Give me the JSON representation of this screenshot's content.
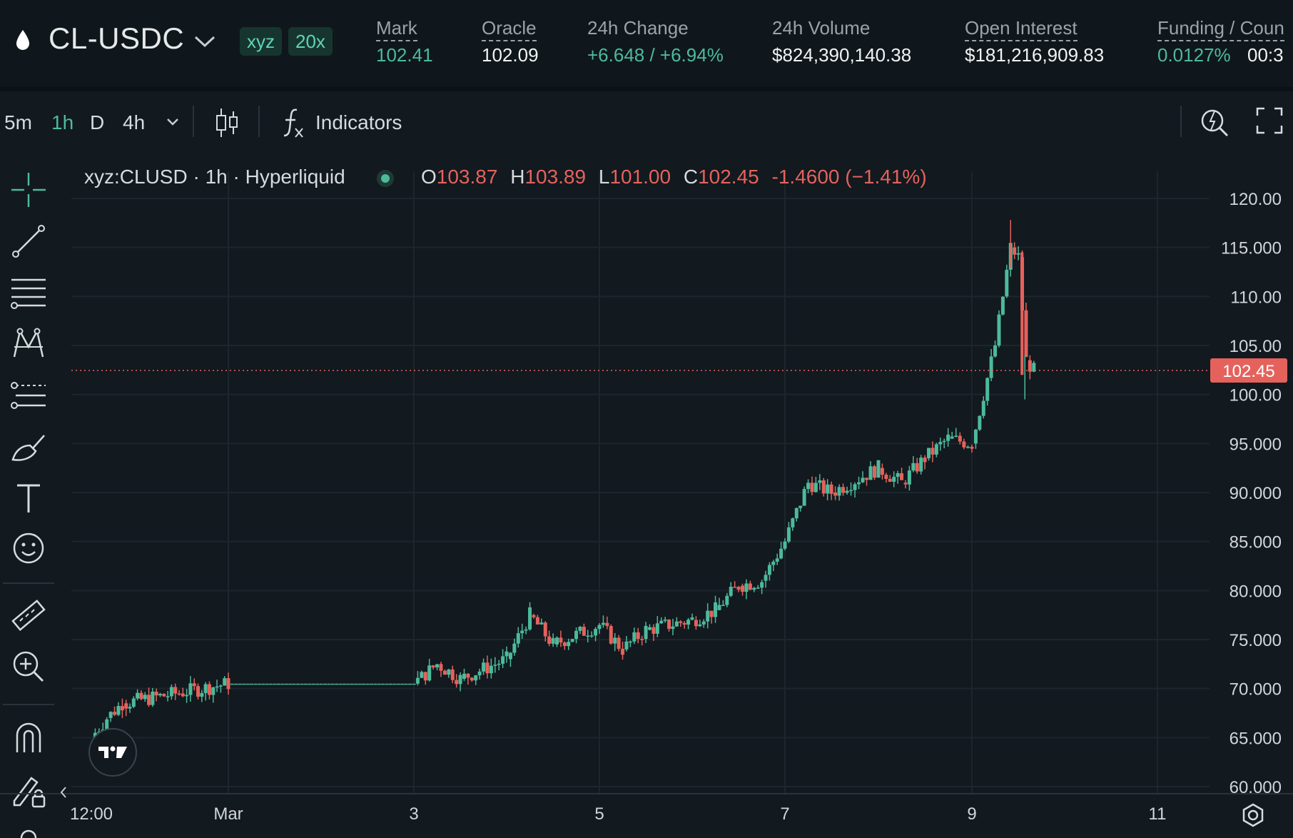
{
  "header": {
    "asset": "CL-USDC",
    "pill_dex": "xyz",
    "pill_leverage": "20x",
    "stats": [
      {
        "label": "Mark",
        "value": "102.41",
        "underlined": true,
        "value_color": "green"
      },
      {
        "label": "Oracle",
        "value": "102.09",
        "underlined": true,
        "value_color": "white"
      },
      {
        "label": "24h Change",
        "value": "+6.648 / +6.94%",
        "underlined": false,
        "value_color": "green"
      },
      {
        "label": "24h Volume",
        "value": "$824,390,140.38",
        "underlined": false,
        "value_color": "white"
      },
      {
        "label": "Open Interest",
        "value": "$181,216,909.83",
        "underlined": true,
        "value_color": "white"
      },
      {
        "label": "Funding / Coun",
        "value": "0.0127%",
        "value2": "00:3",
        "underlined": true,
        "value_color": "green"
      }
    ]
  },
  "toolbar": {
    "timeframes": [
      "5m",
      "1h",
      "D",
      "4h"
    ],
    "active_timeframe": "1h",
    "indicators_label": "Indicators"
  },
  "legend": {
    "symbol": "xyz:CLUSD · 1h · Hyperliquid",
    "o_label": "O",
    "o_value": "103.87",
    "h_label": "H",
    "h_value": "103.89",
    "l_label": "L",
    "l_value": "101.00",
    "c_label": "C",
    "c_value": "102.45",
    "change": "-1.4600 (−1.41%)"
  },
  "colors": {
    "up": "#4dba9b",
    "down": "#e5625c",
    "background": "#12191f"
  },
  "icons": [
    "drop-icon",
    "chevron-down-icon",
    "candle-type-icon",
    "fx-icon",
    "quick-search-icon",
    "fullscreen-icon",
    "crosshair-icon",
    "trendline-icon",
    "fib-icon",
    "pattern-icon",
    "forecast-icon",
    "brush-icon",
    "text-icon",
    "emoji-icon",
    "ruler-icon",
    "zoom-in-icon",
    "magnet-icon",
    "lock-drawings-icon",
    "settings-icon"
  ],
  "chart_data": {
    "type": "candlestick",
    "interval": "1h",
    "ylim": [
      60,
      120
    ],
    "y_ticks": [
      "120.00",
      "115.000",
      "110.00",
      "105.00",
      "100.00",
      "95.000",
      "90.000",
      "85.000",
      "80.000",
      "75.000",
      "70.000",
      "65.000",
      "60.000"
    ],
    "x_ticks": [
      "12:00",
      "Mar",
      "3",
      "5",
      "7",
      "9",
      "11"
    ],
    "last_price": "102.45",
    "series": [
      {
        "x": "Mar 1 12:00",
        "close": 65.0
      },
      {
        "x": "Mar 1 16:00",
        "close": 67.0
      },
      {
        "x": "Mar 1 20:00",
        "close": 68.5
      },
      {
        "x": "Mar 2 00:00",
        "close": 70.5
      },
      {
        "x": "Mar 2 12:00",
        "close": 70.5
      },
      {
        "x": "Mar 3 00:00",
        "close": 70.5
      },
      {
        "x": "Mar 3 06:00",
        "close": 72.5
      },
      {
        "x": "Mar 3 12:00",
        "close": 71.0
      },
      {
        "x": "Mar 4 00:00",
        "close": 73.0
      },
      {
        "x": "Mar 4 06:00",
        "close": 77.5
      },
      {
        "x": "Mar 4 12:00",
        "close": 74.5
      },
      {
        "x": "Mar 5 00:00",
        "close": 76.5
      },
      {
        "x": "Mar 5 06:00",
        "close": 74.0
      },
      {
        "x": "Mar 5 12:00",
        "close": 76.0
      },
      {
        "x": "Mar 6 00:00",
        "close": 77.0
      },
      {
        "x": "Mar 6 06:00",
        "close": 78.0
      },
      {
        "x": "Mar 6 12:00",
        "close": 80.5
      },
      {
        "x": "Mar 6 18:00",
        "close": 81.0
      },
      {
        "x": "Mar 7 00:00",
        "close": 85.0
      },
      {
        "x": "Mar 7 06:00",
        "close": 91.0
      },
      {
        "x": "Mar 7 12:00",
        "close": 90.0
      },
      {
        "x": "Mar 8 00:00",
        "close": 92.5
      },
      {
        "x": "Mar 8 06:00",
        "close": 91.0
      },
      {
        "x": "Mar 8 12:00",
        "close": 93.5
      },
      {
        "x": "Mar 8 18:00",
        "close": 95.5
      },
      {
        "x": "Mar 9 00:00",
        "close": 95.0
      },
      {
        "x": "Mar 9 06:00",
        "close": 105.0
      },
      {
        "x": "Mar 9 08:00",
        "close": 110.0
      },
      {
        "x": "Mar 9 10:00",
        "close": 115.0
      },
      {
        "x": "Mar 9 12:00",
        "close": 114.0
      },
      {
        "x": "Mar 9 14:00",
        "close": 103.5
      },
      {
        "x": "Mar 9 16:00",
        "close": 102.45
      }
    ]
  }
}
